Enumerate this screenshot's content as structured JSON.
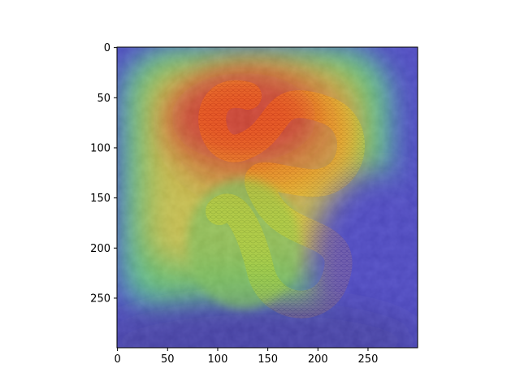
{
  "chart_data": {
    "type": "heatmap",
    "subtype": "image with saliency heatmap overlay",
    "colormap": "jet",
    "title": "",
    "xlabel": "",
    "ylabel": "",
    "xlim": [
      0,
      299
    ],
    "ylim": [
      299,
      0
    ],
    "y_axis_inverted": true,
    "grid": false,
    "x_ticks": [
      0,
      50,
      100,
      150,
      200,
      250
    ],
    "y_ticks": [
      0,
      50,
      100,
      150,
      200,
      250
    ],
    "x_tick_labels": [
      "0",
      "50",
      "100",
      "150",
      "200",
      "250"
    ],
    "y_tick_labels": [
      "0",
      "50",
      "100",
      "150",
      "200",
      "250"
    ],
    "heat_regions": [
      {
        "level": "high",
        "x": [
          40,
          240
        ],
        "y": [
          25,
          240
        ]
      },
      {
        "level": "peak",
        "x": [
          70,
          220
        ],
        "y": [
          40,
          190
        ]
      },
      {
        "level": "low",
        "x": [
          230,
          299
        ],
        "y": [
          0,
          299
        ]
      },
      {
        "level": "low",
        "x": [
          0,
          299
        ],
        "y": [
          240,
          299
        ]
      }
    ],
    "background_subject": "coiled snake on rocky ground"
  }
}
